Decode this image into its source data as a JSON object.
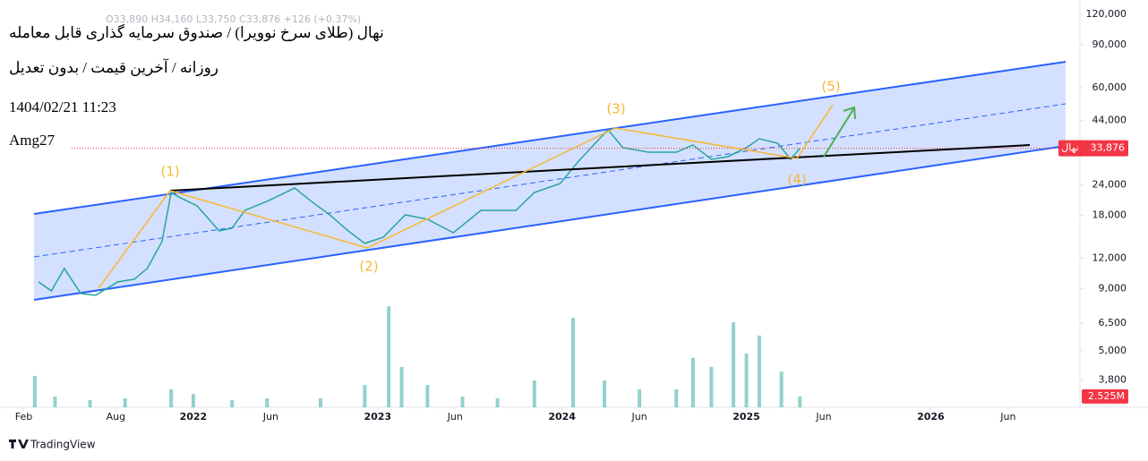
{
  "ohlc": "O33,890 H34,160 L33,750 C33,876 +126 (+0.37%)",
  "header": {
    "title": "نهال (طلای سرخ نوویرا) / صندوق سرمایه گذاری قابل معامله",
    "subtitle": "روزانه / آخرین قیمت / بدون تعدیل",
    "datetime": "1404/02/21 11:23",
    "author": "Amg27"
  },
  "footer": "TradingView",
  "chart_data": {
    "type": "line",
    "log_scale": true,
    "grid": false,
    "x": [
      2021.16,
      2021.23,
      2021.3,
      2021.39,
      2021.47,
      2021.59,
      2021.68,
      2021.75,
      2021.83,
      2021.88,
      2021.92,
      2022.02,
      2022.14,
      2022.21,
      2022.28,
      2022.4,
      2022.55,
      2022.64,
      2022.74,
      2022.84,
      2022.93,
      2023.03,
      2023.15,
      2023.27,
      2023.41,
      2023.56,
      2023.75,
      2023.85,
      2023.99,
      2024.09,
      2024.18,
      2024.25,
      2024.33,
      2024.47,
      2024.62,
      2024.71,
      2024.81,
      2024.9,
      2025.0,
      2025.07,
      2025.17,
      2025.24,
      2025.29
    ],
    "series": [
      {
        "name": "نهال",
        "color": "#26a69a",
        "values": [
          9585,
          8800,
          10880,
          8585,
          8445,
          9585,
          9830,
          10880,
          14020,
          22310,
          21390,
          19670,
          15520,
          15910,
          18840,
          20510,
          23270,
          20510,
          18060,
          15520,
          13790,
          14620,
          18060,
          17320,
          15250,
          18840,
          18840,
          22310,
          24290,
          30000,
          35520,
          40340,
          34070,
          32630,
          32630,
          34950,
          30510,
          31300,
          34070,
          37050,
          35520,
          30510,
          33876
        ]
      }
    ],
    "last_price": {
      "value": 33876,
      "label": "33,876"
    },
    "last_price_color": "#f23645",
    "xlim": [
      2021,
      2026.78
    ],
    "xticks": [
      {
        "value": 2021.08,
        "label": "Feb"
      },
      {
        "value": 2021.58,
        "label": "Aug"
      },
      2022,
      {
        "value": 2022.42,
        "label": "Jun"
      },
      2023,
      {
        "value": 2023.42,
        "label": "Jun"
      },
      2024,
      {
        "value": 2024.42,
        "label": "Jun"
      },
      2025,
      {
        "value": 2025.42,
        "label": "Jun"
      },
      2026,
      {
        "value": 2026.42,
        "label": "Jun"
      }
    ],
    "ylim": [
      2930,
      137500
    ],
    "yticks": [
      {
        "value": 3800,
        "label": "3,800"
      },
      {
        "value": 5000,
        "label": "5,000"
      },
      {
        "value": 6500,
        "label": "6,500"
      },
      {
        "value": 9000,
        "label": "9,000"
      },
      {
        "value": 12000,
        "label": "12,000"
      },
      {
        "value": 18000,
        "label": "18,000"
      },
      {
        "value": 24000,
        "label": "24,000"
      },
      {
        "value": 44000,
        "label": "44,000"
      },
      {
        "value": 60000,
        "label": "60,000"
      },
      {
        "value": 90000,
        "label": "90,000"
      },
      {
        "value": 120000,
        "label": "120,000"
      }
    ],
    "volume": {
      "color": "#26a69a",
      "x": [
        2021.14,
        2021.25,
        2021.44,
        2021.63,
        2021.88,
        2022.0,
        2022.21,
        2022.4,
        2022.69,
        2022.93,
        2023.06,
        2023.13,
        2023.27,
        2023.46,
        2023.65,
        2023.85,
        2024.06,
        2024.23,
        2024.42,
        2024.62,
        2024.71,
        2024.81,
        2024.93,
        2025.0,
        2025.07,
        2025.19,
        2025.29
      ],
      "values": [
        7300000,
        2500000,
        1670000,
        2080000,
        4170000,
        3100000,
        1670000,
        2080000,
        2080000,
        5200000,
        23500000,
        9400000,
        5200000,
        2500000,
        2080000,
        6250000,
        20800000,
        6250000,
        4170000,
        4170000,
        11500000,
        9400000,
        19800000,
        12500000,
        16700000,
        8300000,
        2525000
      ],
      "last_value_label": "2.525M",
      "label_color": "#f23645",
      "ylim": [
        0,
        25000000
      ]
    },
    "annotations": [
      "(1)",
      "(2)",
      "(3)",
      "(4)",
      "(5)"
    ]
  }
}
